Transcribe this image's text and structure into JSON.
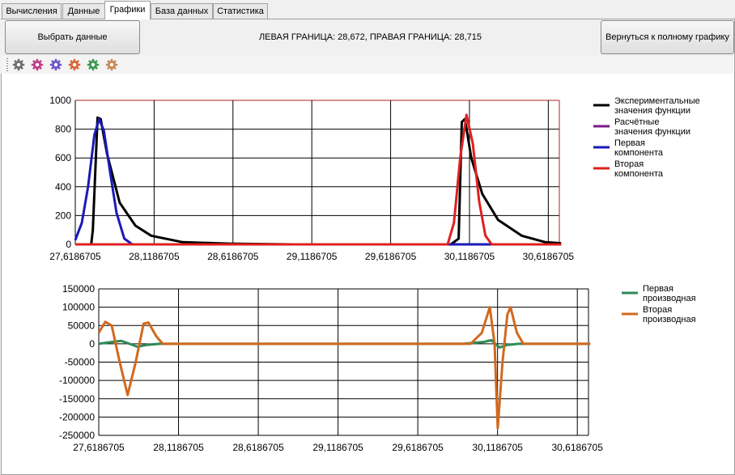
{
  "tabs": [
    {
      "label": "Вычисления",
      "active": false
    },
    {
      "label": "Данные",
      "active": false
    },
    {
      "label": "Графики",
      "active": true
    },
    {
      "label": "База данных",
      "active": false
    },
    {
      "label": "Статистика",
      "active": false
    }
  ],
  "select_button": "Выбрать данные",
  "bounds_text": "ЛЕВАЯ ГРАНИЦА: 28,672, ПРАВАЯ ГРАНИЦА: 28,715",
  "full_chart_button": "Вернуться к полному графику",
  "toolbar_icons": [
    {
      "name": "gear-icon",
      "color": "#6e6e6e"
    },
    {
      "name": "gear-icon",
      "color": "#c0408a"
    },
    {
      "name": "gear-icon",
      "color": "#6e56c8"
    },
    {
      "name": "gear-icon",
      "color": "#d9683a"
    },
    {
      "name": "gear-icon",
      "color": "#3f9a52"
    },
    {
      "name": "gear-icon",
      "color": "#c98a5a"
    }
  ],
  "chart_data": [
    {
      "type": "line",
      "ylim": [
        0,
        1000
      ],
      "yticks": [
        0,
        200,
        400,
        600,
        800,
        1000
      ],
      "xlim": [
        27.6186705,
        30.6886705
      ],
      "xticks": [
        "27,6186705",
        "28,1186705",
        "28,6186705",
        "29,1186705",
        "29,6186705",
        "30,1186705",
        "30,6186705"
      ],
      "legend_position": "right",
      "series": [
        {
          "name": "Экспериментальные значения функции",
          "color": "#000000",
          "points": [
            [
              27.6187,
              0
            ],
            [
              27.72,
              0
            ],
            [
              27.73,
              100
            ],
            [
              27.76,
              880
            ],
            [
              27.78,
              870
            ],
            [
              27.82,
              630
            ],
            [
              27.9,
              290
            ],
            [
              28.0,
              130
            ],
            [
              28.1,
              60
            ],
            [
              28.3,
              15
            ],
            [
              28.6,
              5
            ],
            [
              29.0,
              0
            ],
            [
              29.5,
              0
            ],
            [
              30.0,
              0
            ],
            [
              30.05,
              40
            ],
            [
              30.07,
              850
            ],
            [
              30.09,
              870
            ],
            [
              30.13,
              600
            ],
            [
              30.2,
              350
            ],
            [
              30.3,
              170
            ],
            [
              30.45,
              60
            ],
            [
              30.6,
              15
            ],
            [
              30.7,
              8
            ]
          ]
        },
        {
          "name": "Расчётные значения функции",
          "color": "#7a1a8c",
          "points": [
            [
              27.6187,
              0
            ],
            [
              30.7,
              0
            ]
          ]
        },
        {
          "name": "Первая компонента",
          "color": "#1a1ab8",
          "points": [
            [
              27.6187,
              30
            ],
            [
              27.66,
              150
            ],
            [
              27.7,
              400
            ],
            [
              27.74,
              760
            ],
            [
              27.77,
              870
            ],
            [
              27.8,
              790
            ],
            [
              27.84,
              500
            ],
            [
              27.88,
              220
            ],
            [
              27.93,
              40
            ],
            [
              27.98,
              0
            ],
            [
              30.7,
              0
            ]
          ]
        },
        {
          "name": "Вторая компонента",
          "color": "#e02020",
          "points": [
            [
              27.6187,
              0
            ],
            [
              29.98,
              0
            ],
            [
              30.02,
              150
            ],
            [
              30.06,
              600
            ],
            [
              30.1,
              900
            ],
            [
              30.14,
              700
            ],
            [
              30.18,
              300
            ],
            [
              30.22,
              60
            ],
            [
              30.26,
              0
            ],
            [
              30.7,
              0
            ]
          ]
        }
      ]
    },
    {
      "type": "line",
      "ylim": [
        -250000,
        150000
      ],
      "yticks": [
        -250000,
        -200000,
        -150000,
        -100000,
        -50000,
        0,
        50000,
        100000,
        150000
      ],
      "xlim": [
        27.6186705,
        30.6886705
      ],
      "xticks": [
        "27,6186705",
        "28,1186705",
        "28,6186705",
        "29,1186705",
        "29,6186705",
        "30,1186705",
        "30,6186705"
      ],
      "legend_position": "right",
      "series": [
        {
          "name": "Первая производная",
          "color": "#2e8b57",
          "points": [
            [
              27.6187,
              0
            ],
            [
              27.7,
              5000
            ],
            [
              27.76,
              8000
            ],
            [
              27.8,
              2000
            ],
            [
              27.86,
              -8000
            ],
            [
              27.92,
              -3000
            ],
            [
              28.0,
              0
            ],
            [
              29.9,
              0
            ],
            [
              30.03,
              5000
            ],
            [
              30.08,
              10000
            ],
            [
              30.13,
              -10000
            ],
            [
              30.18,
              -3000
            ],
            [
              30.25,
              0
            ],
            [
              30.7,
              0
            ]
          ]
        },
        {
          "name": "Вторая производная",
          "color": "#d2691e",
          "points": [
            [
              27.6187,
              30000
            ],
            [
              27.66,
              60000
            ],
            [
              27.7,
              50000
            ],
            [
              27.75,
              -50000
            ],
            [
              27.8,
              -140000
            ],
            [
              27.85,
              -50000
            ],
            [
              27.9,
              55000
            ],
            [
              27.93,
              58000
            ],
            [
              27.98,
              20000
            ],
            [
              28.02,
              0
            ],
            [
              29.95,
              0
            ],
            [
              30.02,
              30000
            ],
            [
              30.07,
              100000
            ],
            [
              30.1,
              0
            ],
            [
              30.12,
              -230000
            ],
            [
              30.15,
              -50000
            ],
            [
              30.18,
              80000
            ],
            [
              30.2,
              100000
            ],
            [
              30.24,
              30000
            ],
            [
              30.28,
              0
            ],
            [
              30.7,
              0
            ]
          ]
        }
      ]
    }
  ]
}
